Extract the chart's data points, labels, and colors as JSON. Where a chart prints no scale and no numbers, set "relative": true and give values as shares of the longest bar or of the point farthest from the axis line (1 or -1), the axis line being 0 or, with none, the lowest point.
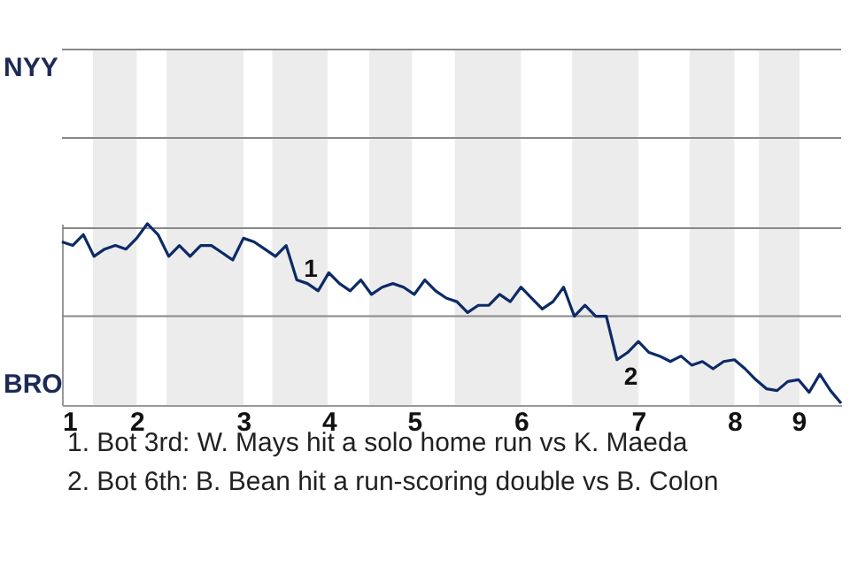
{
  "chart_data": {
    "type": "line",
    "categories": [
      "1",
      null,
      null,
      null,
      null,
      null,
      null,
      "2",
      null,
      null,
      null,
      null,
      null,
      null,
      null,
      null,
      null,
      "3",
      null,
      null,
      null,
      null,
      null,
      null,
      null,
      "4",
      null,
      null,
      null,
      null,
      null,
      null,
      null,
      "5",
      null,
      null,
      null,
      null,
      null,
      null,
      null,
      null,
      null,
      "6",
      null,
      null,
      null,
      null,
      null,
      null,
      null,
      null,
      null,
      null,
      "7",
      null,
      null,
      null,
      null,
      null,
      null,
      null,
      null,
      "8",
      null,
      null,
      null,
      null,
      null,
      "9",
      null,
      null,
      null,
      null
    ],
    "relative": true,
    "series": [
      {
        "color": "#0c2a66",
        "values": [
          0.9,
          0.88,
          0.94,
          0.82,
          0.86,
          0.88,
          0.86,
          0.92,
          1,
          0.94,
          0.82,
          0.88,
          0.82,
          0.88,
          0.88,
          0.84,
          0.8,
          0.92,
          0.9,
          0.86,
          0.82,
          0.88,
          0.69,
          0.67,
          0.63,
          0.73,
          0.67,
          0.63,
          0.69,
          0.61,
          0.65,
          0.67,
          0.65,
          0.61,
          0.69,
          0.63,
          0.59,
          0.57,
          0.51,
          0.55,
          0.55,
          0.61,
          0.57,
          0.65,
          0.59,
          0.53,
          0.57,
          0.65,
          0.49,
          0.55,
          0.49,
          0.49,
          0.25,
          0.29,
          0.35,
          0.29,
          0.27,
          0.24,
          0.27,
          0.22,
          0.24,
          0.2,
          0.24,
          0.25,
          0.2,
          0.14,
          0.09,
          0.08,
          0.13,
          0.14,
          0.07,
          0.17,
          0.08,
          0.01
        ]
      }
    ],
    "ref_lines": [
      {
        "axis": "y",
        "value": 0.49,
        "color": "#888888"
      }
    ],
    "annotations": [
      "NYY",
      "BRO",
      {
        "text": "1",
        "y": 0.69
      },
      {
        "text": "2",
        "y": 0.25
      },
      "1. Bot 3rd: W. Mays hit a solo home run vs K. Maeda",
      "2. Bot 6th: B. Bean hit a run-scoring double vs B. Colon"
    ]
  }
}
